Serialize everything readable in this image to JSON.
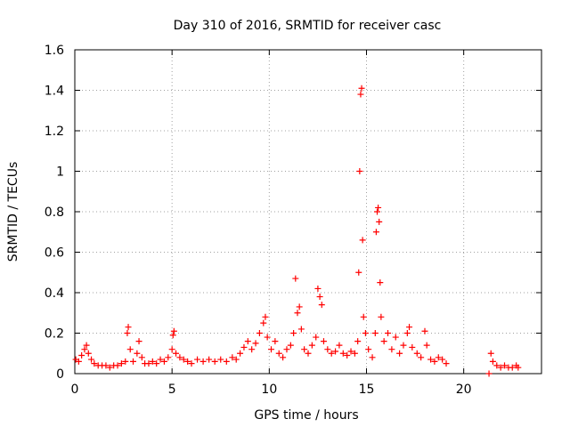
{
  "chart_data": {
    "type": "scatter",
    "title": "Day 310 of 2016, SRMTID for receiver casc",
    "xlabel": "GPS time / hours",
    "ylabel": "SRMTID / TECUs",
    "xlim": [
      0,
      24
    ],
    "ylim": [
      0,
      1.6
    ],
    "x_ticks": [
      0,
      5,
      10,
      15,
      20
    ],
    "x_tick_labels": [
      "0",
      "5",
      "10",
      "15",
      "20"
    ],
    "y_ticks": [
      0,
      0.2,
      0.4,
      0.6,
      0.8,
      1,
      1.2,
      1.4,
      1.6
    ],
    "y_tick_labels": [
      "0",
      "0.2",
      "0.4",
      "0.6",
      "0.8",
      "1",
      "1.2",
      "1.4",
      "1.6"
    ],
    "grid": true,
    "marker": "plus",
    "color": "#ff0000",
    "series": [
      {
        "name": "SRMTID",
        "points": [
          [
            0.05,
            0.07
          ],
          [
            0.2,
            0.06
          ],
          [
            0.35,
            0.09
          ],
          [
            0.5,
            0.12
          ],
          [
            0.6,
            0.14
          ],
          [
            0.7,
            0.1
          ],
          [
            0.85,
            0.07
          ],
          [
            1.0,
            0.05
          ],
          [
            1.2,
            0.04
          ],
          [
            1.4,
            0.04
          ],
          [
            1.6,
            0.04
          ],
          [
            1.8,
            0.03
          ],
          [
            2.0,
            0.04
          ],
          [
            2.2,
            0.04
          ],
          [
            2.4,
            0.05
          ],
          [
            2.6,
            0.06
          ],
          [
            2.7,
            0.2
          ],
          [
            2.75,
            0.23
          ],
          [
            2.85,
            0.12
          ],
          [
            3.0,
            0.06
          ],
          [
            3.2,
            0.1
          ],
          [
            3.3,
            0.16
          ],
          [
            3.45,
            0.08
          ],
          [
            3.6,
            0.05
          ],
          [
            3.8,
            0.05
          ],
          [
            4.0,
            0.06
          ],
          [
            4.2,
            0.05
          ],
          [
            4.4,
            0.07
          ],
          [
            4.6,
            0.06
          ],
          [
            4.8,
            0.08
          ],
          [
            5.0,
            0.12
          ],
          [
            5.05,
            0.19
          ],
          [
            5.1,
            0.21
          ],
          [
            5.2,
            0.1
          ],
          [
            5.4,
            0.08
          ],
          [
            5.6,
            0.07
          ],
          [
            5.8,
            0.06
          ],
          [
            6.0,
            0.05
          ],
          [
            6.3,
            0.07
          ],
          [
            6.6,
            0.06
          ],
          [
            6.9,
            0.07
          ],
          [
            7.2,
            0.06
          ],
          [
            7.5,
            0.07
          ],
          [
            7.8,
            0.06
          ],
          [
            8.1,
            0.08
          ],
          [
            8.3,
            0.07
          ],
          [
            8.5,
            0.1
          ],
          [
            8.7,
            0.13
          ],
          [
            8.9,
            0.16
          ],
          [
            9.1,
            0.12
          ],
          [
            9.3,
            0.15
          ],
          [
            9.5,
            0.2
          ],
          [
            9.7,
            0.25
          ],
          [
            9.8,
            0.28
          ],
          [
            9.9,
            0.18
          ],
          [
            10.1,
            0.12
          ],
          [
            10.3,
            0.16
          ],
          [
            10.5,
            0.1
          ],
          [
            10.7,
            0.08
          ],
          [
            10.9,
            0.12
          ],
          [
            11.1,
            0.14
          ],
          [
            11.25,
            0.2
          ],
          [
            11.35,
            0.47
          ],
          [
            11.45,
            0.3
          ],
          [
            11.55,
            0.33
          ],
          [
            11.65,
            0.22
          ],
          [
            11.8,
            0.12
          ],
          [
            12.0,
            0.1
          ],
          [
            12.2,
            0.14
          ],
          [
            12.4,
            0.18
          ],
          [
            12.5,
            0.42
          ],
          [
            12.6,
            0.38
          ],
          [
            12.7,
            0.34
          ],
          [
            12.8,
            0.16
          ],
          [
            13.0,
            0.12
          ],
          [
            13.2,
            0.1
          ],
          [
            13.4,
            0.11
          ],
          [
            13.6,
            0.14
          ],
          [
            13.8,
            0.1
          ],
          [
            14.0,
            0.09
          ],
          [
            14.2,
            0.11
          ],
          [
            14.4,
            0.1
          ],
          [
            14.55,
            0.16
          ],
          [
            14.6,
            0.5
          ],
          [
            14.65,
            1.0
          ],
          [
            14.7,
            1.38
          ],
          [
            14.75,
            1.41
          ],
          [
            14.8,
            0.66
          ],
          [
            14.85,
            0.28
          ],
          [
            14.95,
            0.2
          ],
          [
            15.1,
            0.12
          ],
          [
            15.3,
            0.08
          ],
          [
            15.45,
            0.2
          ],
          [
            15.5,
            0.7
          ],
          [
            15.55,
            0.8
          ],
          [
            15.6,
            0.82
          ],
          [
            15.65,
            0.75
          ],
          [
            15.7,
            0.45
          ],
          [
            15.75,
            0.28
          ],
          [
            15.9,
            0.16
          ],
          [
            16.1,
            0.2
          ],
          [
            16.3,
            0.12
          ],
          [
            16.5,
            0.18
          ],
          [
            16.7,
            0.1
          ],
          [
            16.9,
            0.14
          ],
          [
            17.1,
            0.2
          ],
          [
            17.2,
            0.23
          ],
          [
            17.35,
            0.13
          ],
          [
            17.6,
            0.1
          ],
          [
            17.8,
            0.08
          ],
          [
            18.0,
            0.21
          ],
          [
            18.1,
            0.14
          ],
          [
            18.3,
            0.07
          ],
          [
            18.5,
            0.06
          ],
          [
            18.7,
            0.08
          ],
          [
            18.9,
            0.07
          ],
          [
            19.1,
            0.05
          ],
          [
            21.3,
            0.0
          ],
          [
            21.4,
            0.1
          ],
          [
            21.5,
            0.06
          ],
          [
            21.7,
            0.04
          ],
          [
            21.9,
            0.03
          ],
          [
            22.1,
            0.04
          ],
          [
            22.3,
            0.03
          ],
          [
            22.5,
            0.03
          ],
          [
            22.7,
            0.04
          ],
          [
            22.8,
            0.03
          ]
        ]
      }
    ]
  }
}
